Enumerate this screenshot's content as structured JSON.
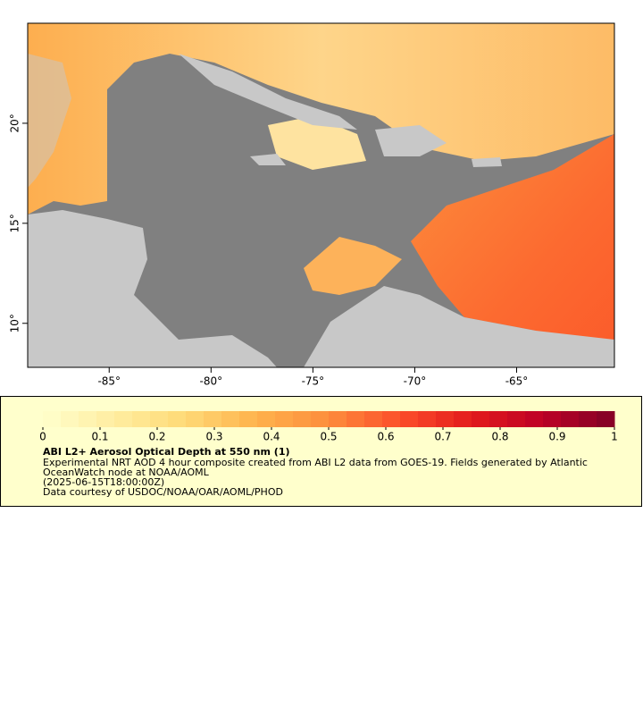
{
  "map": {
    "xlim": [
      -89,
      -60.2
    ],
    "ylim": [
      7.8,
      25
    ],
    "xticks": [
      {
        "value": -85,
        "label": "-85°"
      },
      {
        "value": -80,
        "label": "-80°"
      },
      {
        "value": -75,
        "label": "-75°"
      },
      {
        "value": -70,
        "label": "-70°"
      },
      {
        "value": -65,
        "label": "-65°"
      }
    ],
    "yticks": [
      {
        "value": 10,
        "label": "10°"
      },
      {
        "value": 15,
        "label": "15°"
      },
      {
        "value": 20,
        "label": "20°"
      }
    ]
  },
  "colorbar": {
    "range": [
      0,
      1
    ],
    "ticks": [
      0,
      0.1,
      0.2,
      0.3,
      0.4,
      0.5,
      0.6,
      0.7,
      0.8,
      0.9,
      1
    ],
    "colors": [
      "#ffffcc",
      "#ffeda0",
      "#fed976",
      "#feb24c",
      "#fd8d3c",
      "#fc4e2a",
      "#e31a1c",
      "#bd0026",
      "#800026"
    ]
  },
  "legend": {
    "title": "ABI L2+ Aerosol Optical Depth at 550 nm (1)",
    "lines": [
      "Experimental NRT AOD 4 hour composite created from ABI L2 data from GOES-19. Fields generated by Atlantic",
      "OceanWatch node at NOAA/AOML",
      "(2025-06-15T18:00:00Z)",
      "Data courtesy of USDOC/NOAA/OAR/AOML/PHOD"
    ]
  }
}
